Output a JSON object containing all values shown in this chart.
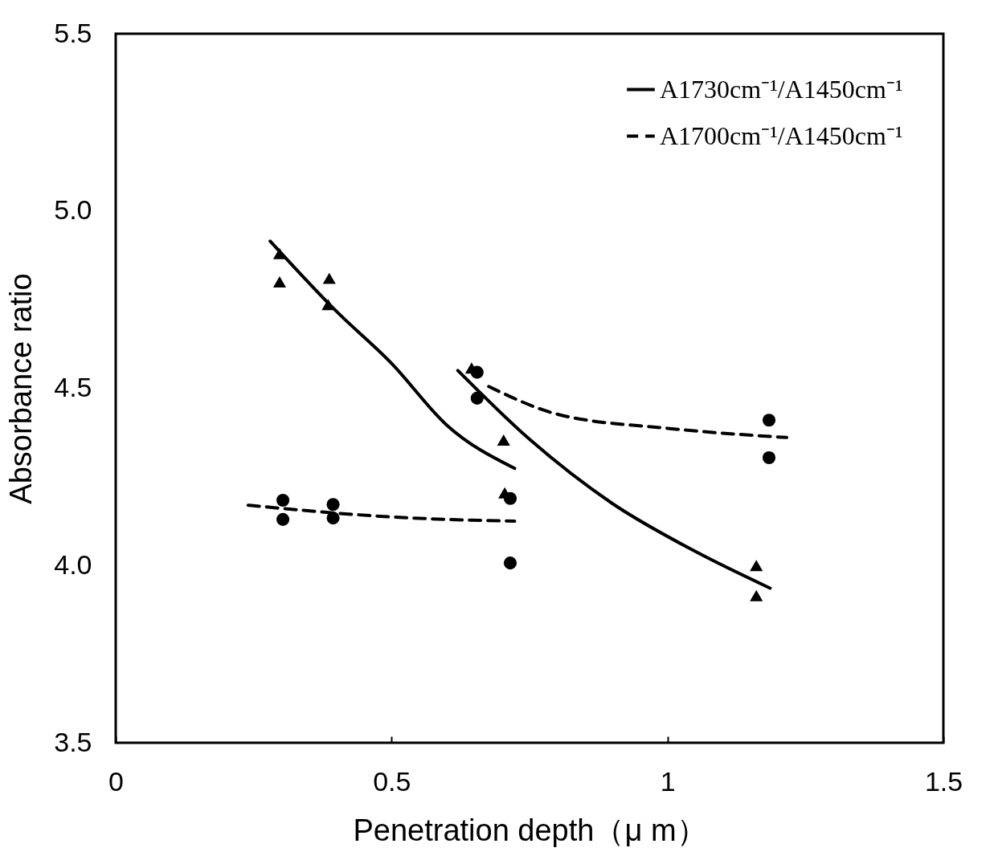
{
  "chart_data": {
    "type": "scatter",
    "xlabel": "Penetration depth（μ m）",
    "ylabel": "Absorbance ratio",
    "xlim": [
      0,
      1.5
    ],
    "xticks": [
      0,
      0.5,
      1,
      1.5
    ],
    "ylim": [
      3.5,
      5.5
    ],
    "yticks": [
      {
        "value": 3.5,
        "label": "3.5"
      },
      {
        "value": 4,
        "label": "4.0"
      },
      {
        "value": 4.5,
        "label": "4.5"
      },
      {
        "value": 5,
        "label": "5.0"
      },
      {
        "value": 5.5,
        "label": "5.5"
      }
    ],
    "grid": false,
    "legend": "top right",
    "series": [
      {
        "type": "line",
        "name": "A1730cm⁻¹/A1450cm⁻¹",
        "color": "#000000",
        "line_style": "solid",
        "marker": "none",
        "x": [
          0.28,
          0.4,
          0.5,
          0.6,
          0.723
        ],
        "values": [
          4.915,
          4.717,
          4.57,
          4.396,
          4.274
        ]
      },
      {
        "type": "line",
        "color": "#000000",
        "line_style": "solid",
        "marker": "none",
        "x": [
          0.62,
          0.75,
          0.9,
          1.05,
          1.186
        ],
        "values": [
          4.55,
          4.356,
          4.175,
          4.04,
          3.936
        ]
      },
      {
        "type": "line",
        "name": "A1700cm⁻¹/A1450cm⁻¹",
        "color": "#000000",
        "line_style": "dashed",
        "marker": "none",
        "x": [
          0.24,
          0.5,
          0.723
        ],
        "values": [
          4.17,
          4.137,
          4.125
        ]
      },
      {
        "type": "line",
        "color": "#000000",
        "line_style": "dashed",
        "marker": "none",
        "x": [
          0.676,
          0.8,
          1.0,
          1.216
        ],
        "values": [
          4.505,
          4.427,
          4.387,
          4.361
        ]
      },
      {
        "color": "#000000",
        "marker": "triangle",
        "x": [
          0.297,
          0.297,
          0.387,
          0.385,
          0.645,
          0.703,
          0.705,
          1.161,
          1.161
        ],
        "values": [
          4.88,
          4.8,
          4.81,
          4.736,
          4.557,
          4.354,
          4.205,
          4.0,
          3.915
        ]
      },
      {
        "color": "#000000",
        "marker": "circle",
        "x": [
          0.303,
          0.303,
          0.394,
          0.394,
          0.655,
          0.655,
          0.715,
          0.715,
          1.184,
          1.184
        ],
        "values": [
          4.184,
          4.13,
          4.172,
          4.134,
          4.545,
          4.472,
          4.189,
          4.007,
          4.41,
          4.304
        ]
      }
    ]
  }
}
